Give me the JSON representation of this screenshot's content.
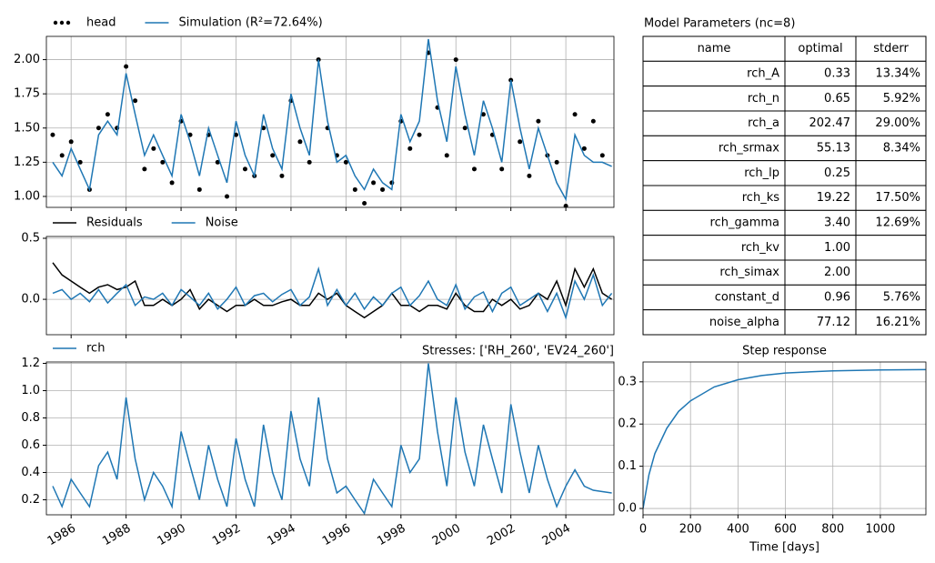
{
  "chart_data": [
    {
      "type": "line",
      "legend": "above-left",
      "grid": true,
      "xtick_labels": false,
      "x": [
        1985.33,
        1985.67,
        1986.0,
        1986.33,
        1986.67,
        1987.0,
        1987.33,
        1987.67,
        1988.0,
        1988.33,
        1988.67,
        1989.0,
        1989.33,
        1989.67,
        1990.0,
        1990.33,
        1990.67,
        1991.0,
        1991.33,
        1991.67,
        1992.0,
        1992.33,
        1992.67,
        1993.0,
        1993.33,
        1993.67,
        1994.0,
        1994.33,
        1994.67,
        1995.0,
        1995.33,
        1995.67,
        1996.0,
        1996.33,
        1996.67,
        1997.0,
        1997.33,
        1997.67,
        1998.0,
        1998.33,
        1998.67,
        1999.0,
        1999.33,
        1999.67,
        2000.0,
        2000.33,
        2000.67,
        2001.0,
        2001.33,
        2001.67,
        2002.0,
        2002.33,
        2002.67,
        2003.0,
        2003.33,
        2003.67,
        2004.0,
        2004.33,
        2004.67,
        2005.0,
        2005.33,
        2005.67
      ],
      "series": [
        {
          "name": "head",
          "style": "dots",
          "color": "#000000",
          "values": [
            1.45,
            1.3,
            1.4,
            1.25,
            1.05,
            1.5,
            1.6,
            1.5,
            1.95,
            1.7,
            1.2,
            1.35,
            1.25,
            1.1,
            1.55,
            1.45,
            1.05,
            1.45,
            1.25,
            1.0,
            1.45,
            1.2,
            1.15,
            1.5,
            1.3,
            1.15,
            1.7,
            1.4,
            1.25,
            2.0,
            1.5,
            1.3,
            1.25,
            1.05,
            0.95,
            1.1,
            1.05,
            1.1,
            1.55,
            1.35,
            1.45,
            2.05,
            1.65,
            1.3,
            2.0,
            1.5,
            1.2,
            1.6,
            1.45,
            1.2,
            1.85,
            1.4,
            1.15,
            1.55,
            1.3,
            1.25,
            0.93,
            1.6,
            1.35,
            1.55,
            1.3,
            null
          ]
        },
        {
          "name": "Simulation (R²=72.64%)",
          "style": "line",
          "color": "#1f77b4",
          "values": [
            1.25,
            1.15,
            1.35,
            1.2,
            1.05,
            1.45,
            1.55,
            1.45,
            1.9,
            1.6,
            1.3,
            1.45,
            1.3,
            1.15,
            1.6,
            1.4,
            1.15,
            1.5,
            1.3,
            1.1,
            1.55,
            1.3,
            1.15,
            1.6,
            1.35,
            1.2,
            1.75,
            1.5,
            1.3,
            2.0,
            1.55,
            1.25,
            1.3,
            1.15,
            1.05,
            1.2,
            1.1,
            1.05,
            1.6,
            1.4,
            1.55,
            2.15,
            1.7,
            1.4,
            1.95,
            1.6,
            1.3,
            1.7,
            1.5,
            1.25,
            1.85,
            1.5,
            1.2,
            1.5,
            1.3,
            1.1,
            0.98,
            1.45,
            1.3,
            1.25,
            1.25,
            1.22
          ]
        }
      ],
      "xlim": [
        1985.1,
        2005.75
      ],
      "xticks": [
        1986,
        1988,
        1990,
        1992,
        1994,
        1996,
        1998,
        2000,
        2002,
        2004
      ],
      "ylim": [
        0.92,
        2.17
      ],
      "yticks": [
        {
          "value": 1.0,
          "label": "1.00"
        },
        {
          "value": 1.25,
          "label": "1.25"
        },
        {
          "value": 1.5,
          "label": "1.50"
        },
        {
          "value": 1.75,
          "label": "1.75"
        },
        {
          "value": 2.0,
          "label": "2.00"
        }
      ]
    },
    {
      "type": "line",
      "legend": "above-left",
      "grid": true,
      "xtick_labels": false,
      "x": [
        1985.33,
        1985.67,
        1986.0,
        1986.33,
        1986.67,
        1987.0,
        1987.33,
        1987.67,
        1988.0,
        1988.33,
        1988.67,
        1989.0,
        1989.33,
        1989.67,
        1990.0,
        1990.33,
        1990.67,
        1991.0,
        1991.33,
        1991.67,
        1992.0,
        1992.33,
        1992.67,
        1993.0,
        1993.33,
        1993.67,
        1994.0,
        1994.33,
        1994.67,
        1995.0,
        1995.33,
        1995.67,
        1996.0,
        1996.33,
        1996.67,
        1997.0,
        1997.33,
        1997.67,
        1998.0,
        1998.33,
        1998.67,
        1999.0,
        1999.33,
        1999.67,
        2000.0,
        2000.33,
        2000.67,
        2001.0,
        2001.33,
        2001.67,
        2002.0,
        2002.33,
        2002.67,
        2003.0,
        2003.33,
        2003.67,
        2004.0,
        2004.33,
        2004.67,
        2005.0,
        2005.33,
        2005.67
      ],
      "series": [
        {
          "name": "Residuals",
          "style": "line",
          "color": "#000000",
          "values": [
            0.3,
            0.2,
            0.15,
            0.1,
            0.05,
            0.1,
            0.12,
            0.08,
            0.1,
            0.15,
            -0.05,
            -0.05,
            0.0,
            -0.05,
            0.0,
            0.08,
            -0.08,
            0.0,
            -0.05,
            -0.1,
            -0.05,
            -0.05,
            0.0,
            -0.05,
            -0.05,
            -0.02,
            0.0,
            -0.05,
            -0.05,
            0.05,
            0.0,
            0.05,
            -0.05,
            -0.1,
            -0.15,
            -0.1,
            -0.05,
            0.05,
            -0.05,
            -0.05,
            -0.1,
            -0.05,
            -0.05,
            -0.08,
            0.05,
            -0.05,
            -0.1,
            -0.1,
            0.0,
            -0.05,
            0.0,
            -0.08,
            -0.05,
            0.05,
            0.0,
            0.15,
            -0.05,
            0.25,
            0.1,
            0.25,
            0.05,
            0.0
          ]
        },
        {
          "name": "Noise",
          "style": "line",
          "color": "#1f77b4",
          "values": [
            0.05,
            0.08,
            0.0,
            0.05,
            -0.02,
            0.08,
            -0.03,
            0.05,
            0.12,
            -0.05,
            0.02,
            0.0,
            0.05,
            -0.05,
            0.08,
            0.02,
            -0.05,
            0.05,
            -0.08,
            0.0,
            0.1,
            -0.05,
            0.03,
            0.05,
            -0.02,
            0.04,
            0.08,
            -0.05,
            0.02,
            0.25,
            -0.05,
            0.08,
            -0.05,
            0.05,
            -0.08,
            0.02,
            -0.05,
            0.05,
            0.1,
            -0.05,
            0.03,
            0.15,
            0.0,
            -0.05,
            0.12,
            -0.08,
            0.02,
            0.06,
            -0.1,
            0.05,
            0.1,
            -0.05,
            0.0,
            0.05,
            -0.1,
            0.05,
            -0.15,
            0.15,
            0.0,
            0.2,
            -0.05,
            0.05
          ]
        }
      ],
      "xlim": [
        1985.1,
        2005.75
      ],
      "xticks": [
        1986,
        1988,
        1990,
        1992,
        1994,
        1996,
        1998,
        2000,
        2002,
        2004
      ],
      "ylim": [
        -0.29,
        0.515
      ],
      "yticks": [
        {
          "value": 0.0,
          "label": "0.0"
        },
        0.5
      ]
    },
    {
      "type": "line",
      "legend": "above-left",
      "grid": true,
      "xtick_labels": true,
      "title_right": "Stresses: ['RH_260', 'EV24_260']",
      "x": [
        1985.33,
        1985.67,
        1986.0,
        1986.33,
        1986.67,
        1987.0,
        1987.33,
        1987.67,
        1988.0,
        1988.33,
        1988.67,
        1989.0,
        1989.33,
        1989.67,
        1990.0,
        1990.33,
        1990.67,
        1991.0,
        1991.33,
        1991.67,
        1992.0,
        1992.33,
        1992.67,
        1993.0,
        1993.33,
        1993.67,
        1994.0,
        1994.33,
        1994.67,
        1995.0,
        1995.33,
        1995.67,
        1996.0,
        1996.33,
        1996.67,
        1997.0,
        1997.33,
        1997.67,
        1998.0,
        1998.33,
        1998.67,
        1999.0,
        1999.33,
        1999.67,
        2000.0,
        2000.33,
        2000.67,
        2001.0,
        2001.33,
        2001.67,
        2002.0,
        2002.33,
        2002.67,
        2003.0,
        2003.33,
        2003.67,
        2004.0,
        2004.33,
        2004.67,
        2005.0,
        2005.33,
        2005.67
      ],
      "series": [
        {
          "name": "rch",
          "style": "line",
          "color": "#1f77b4",
          "values": [
            0.3,
            0.15,
            0.35,
            0.25,
            0.15,
            0.45,
            0.55,
            0.35,
            0.95,
            0.5,
            0.2,
            0.4,
            0.3,
            0.15,
            0.7,
            0.45,
            0.2,
            0.6,
            0.35,
            0.15,
            0.65,
            0.35,
            0.15,
            0.75,
            0.4,
            0.2,
            0.85,
            0.5,
            0.3,
            0.95,
            0.5,
            0.25,
            0.3,
            0.2,
            0.1,
            0.35,
            0.25,
            0.15,
            0.6,
            0.4,
            0.5,
            1.2,
            0.7,
            0.3,
            0.95,
            0.55,
            0.3,
            0.75,
            0.5,
            0.25,
            0.9,
            0.55,
            0.25,
            0.6,
            0.35,
            0.15,
            0.3,
            0.42,
            0.3,
            0.27,
            0.26,
            0.25
          ]
        }
      ],
      "xlim": [
        1985.1,
        2005.75
      ],
      "xticks": [
        1986,
        1988,
        1990,
        1992,
        1994,
        1996,
        1998,
        2000,
        2002,
        2004
      ],
      "ylim": [
        0.09,
        1.21
      ],
      "yticks": [
        0.2,
        0.4,
        0.6,
        0.8,
        {
          "value": 1.0,
          "label": "1.0"
        },
        1.2
      ]
    },
    {
      "type": "line",
      "grid": true,
      "xtick_labels": true,
      "title": "Step response",
      "xlabel": "Time [days]",
      "x": [
        0,
        25,
        50,
        100,
        150,
        200,
        300,
        400,
        500,
        600,
        800,
        1000,
        1190
      ],
      "series": [
        {
          "style": "line",
          "color": "#1f77b4",
          "values": [
            0,
            0.08,
            0.13,
            0.19,
            0.23,
            0.255,
            0.288,
            0.305,
            0.315,
            0.321,
            0.326,
            0.328,
            0.329
          ]
        }
      ],
      "xlim": [
        0,
        1192
      ],
      "xticks": [
        0,
        200,
        400,
        600,
        800,
        1000
      ],
      "ylim": [
        -0.015,
        0.347
      ],
      "yticks": [
        {
          "value": 0.0,
          "label": "0.0"
        },
        0.1,
        0.2,
        0.3
      ]
    }
  ],
  "table": {
    "title": "Model Parameters (nc=8)",
    "columns": [
      "name",
      "optimal",
      "stderr"
    ],
    "rows": [
      [
        "rch_A",
        "0.33",
        "13.34%"
      ],
      [
        "rch_n",
        "0.65",
        "5.92%"
      ],
      [
        "rch_a",
        "202.47",
        "29.00%"
      ],
      [
        "rch_srmax",
        "55.13",
        "8.34%"
      ],
      [
        "rch_lp",
        "0.25",
        null
      ],
      [
        "rch_ks",
        "19.22",
        "17.50%"
      ],
      [
        "rch_gamma",
        "3.40",
        "12.69%"
      ],
      [
        "rch_kv",
        "1.00",
        null
      ],
      [
        "rch_simax",
        "2.00",
        null
      ],
      [
        "constant_d",
        "0.96",
        "5.76%"
      ],
      [
        "noise_alpha",
        "77.12",
        "16.21%"
      ]
    ]
  }
}
